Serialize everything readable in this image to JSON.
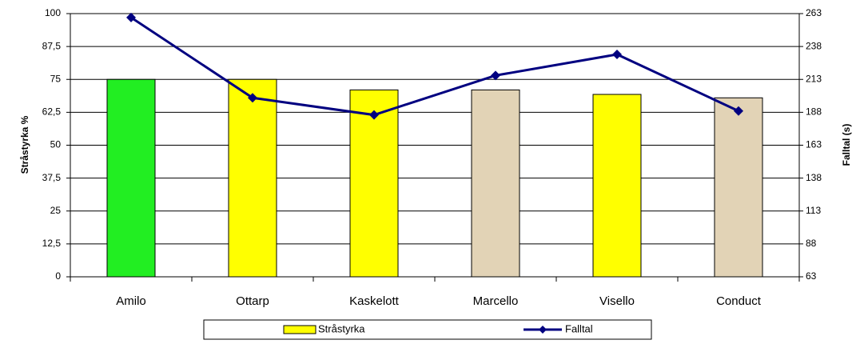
{
  "chart_data": {
    "type": "bar",
    "categories": [
      "Amilo",
      "Ottarp",
      "Kaskelott",
      "Marcello",
      "Visello",
      "Conduct"
    ],
    "series": [
      {
        "name": "Stråstyrka",
        "type": "bar",
        "color": "#ffff00",
        "colors": [
          "#22ee22",
          "#ffff00",
          "#ffff00",
          "#e2d3b6",
          "#ffff00",
          "#e2d3b6"
        ],
        "values": [
          75,
          75,
          71,
          71,
          69.3,
          68
        ]
      },
      {
        "name": "Falltal",
        "type": "line",
        "axis": "y2",
        "color": "#000080",
        "values": [
          260,
          199,
          186,
          216,
          232,
          189
        ]
      }
    ],
    "ylabel": "Stråstyrka %",
    "y2label": "Falltal  (s)",
    "ylim": [
      0,
      100
    ],
    "yticks": [
      0,
      {
        "value": 12.5,
        "label": "12,5"
      },
      25,
      {
        "value": 37.5,
        "label": "37,5"
      },
      50,
      {
        "value": 62.5,
        "label": "62,5"
      },
      75,
      {
        "value": 87.5,
        "label": "87,5"
      },
      100
    ],
    "y2lim": [
      63,
      263
    ],
    "y2ticks": [
      63,
      88,
      113,
      138,
      163,
      188,
      213,
      238,
      263
    ],
    "grid": true,
    "legend": "bottom"
  }
}
